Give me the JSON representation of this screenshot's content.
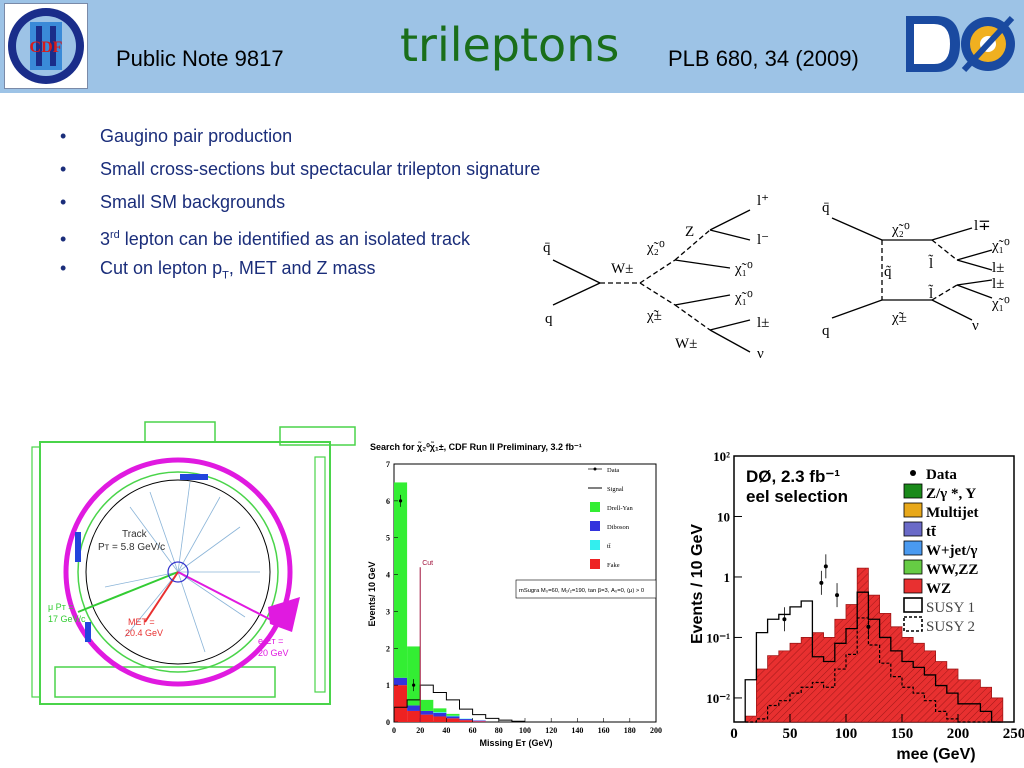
{
  "header": {
    "left_note": "Public Note 9817",
    "title": "trileptons",
    "reference": "PLB 680, 34 (2009)",
    "cdf_logo_text": "CDF II",
    "d0_logo_text": "DØ"
  },
  "bullets": [
    {
      "text": "Gaugino pair production"
    },
    {
      "text": "Small cross-sections but spectacular trilepton signature"
    },
    {
      "text": "Small SM backgrounds"
    },
    {
      "pre": "3",
      "sup": "rd",
      "post": " lepton can be identified as an isolated track"
    },
    {
      "pre": "Cut on lepton p",
      "sub": "T",
      "post": ", MET and Z mass"
    }
  ],
  "bullet_char": "•",
  "feynman_left": {
    "labels": [
      "q̄",
      "q",
      "W±",
      "χ̃₂⁰",
      "χ̃±",
      "Z",
      "l⁺",
      "l⁻",
      "χ̃₁⁰",
      "χ̃₁⁰",
      "W±",
      "l±",
      "ν"
    ]
  },
  "feynman_right": {
    "labels": [
      "q̄",
      "q",
      "q̃",
      "χ̃₂⁰",
      "χ̃±",
      "l∓",
      "l̃",
      "χ̃₁⁰",
      "l±",
      "l±",
      "l̃",
      "χ̃₁⁰",
      "ν"
    ]
  },
  "event_display": {
    "track_label": "Track",
    "track_pt": "Pᴛ = 5.8 GeV/c",
    "mu_label": "μ Pᴛ =",
    "mu_val": "17 GeV/c",
    "met_label": "MET =",
    "met_val": "20.4 GeV",
    "e_label": "e Eᴛ =",
    "e_val": "20 GeV"
  },
  "chart_data": [
    {
      "type": "bar",
      "title": "Search for χ̃₂⁰χ̃₁±, CDF Run II Preliminary, 3.2 fb⁻¹",
      "xlabel": "Missing Eᴛ (GeV)",
      "ylabel": "Events/ 10 GeV",
      "xlim": [
        0,
        200
      ],
      "ylim": [
        0,
        7
      ],
      "x_ticks": [
        0,
        20,
        40,
        60,
        80,
        100,
        120,
        140,
        160,
        180,
        200
      ],
      "y_ticks": [
        0,
        1,
        2,
        3,
        4,
        5,
        6,
        7
      ],
      "bin_edges": [
        0,
        10,
        20,
        30,
        40,
        50,
        60,
        70,
        80,
        90,
        100
      ],
      "series": [
        {
          "name": "Drell-Yan",
          "color": "#33ee33",
          "values": [
            5.3,
            1.6,
            0.3,
            0.1,
            0.05,
            0,
            0,
            0,
            0,
            0
          ]
        },
        {
          "name": "Diboson",
          "color": "#3333dd",
          "values": [
            0.2,
            0.15,
            0.1,
            0.1,
            0.05,
            0.03,
            0.02,
            0,
            0,
            0
          ]
        },
        {
          "name": "tt̄",
          "color": "#33eeee",
          "values": [
            0,
            0,
            0,
            0.02,
            0.02,
            0.01,
            0,
            0,
            0,
            0
          ]
        },
        {
          "name": "Fake",
          "color": "#ee2222",
          "values": [
            1.0,
            0.3,
            0.2,
            0.15,
            0.1,
            0.05,
            0.02,
            0,
            0,
            0
          ]
        },
        {
          "name": "Signal",
          "color": "#000000",
          "values": [
            0.4,
            0.6,
            1.0,
            0.8,
            0.6,
            0.35,
            0.2,
            0.1,
            0.05,
            0.02
          ]
        },
        {
          "name": "Data",
          "color": "#000000",
          "values": [
            6.0,
            1.0,
            0,
            0,
            0,
            0,
            0,
            0,
            0,
            0
          ]
        }
      ],
      "annotation": "mSugra M₀=60, M₁/₂=190, tan β=3, A₀=0, (μ) > 0",
      "cut_label": "Cut",
      "cut_x": 20
    },
    {
      "type": "bar",
      "title": "DØ, 2.3 fb⁻¹",
      "subtitle": "eel selection",
      "xlabel": "mee (GeV)",
      "ylabel": "Events / 10 GeV",
      "xlim": [
        0,
        250
      ],
      "ylim_log": [
        0.004,
        100
      ],
      "x_ticks": [
        0,
        50,
        100,
        150,
        200,
        250
      ],
      "y_ticks": [
        "10⁻²",
        "10⁻¹",
        "1",
        "10",
        "10²"
      ],
      "series": [
        {
          "name": "Data",
          "color": "#000000"
        },
        {
          "name": "Z/γ *, Υ",
          "color": "#1a8a1a"
        },
        {
          "name": "Multijet",
          "color": "#e8a81a"
        },
        {
          "name": "tt̄",
          "color": "#6a6ac8"
        },
        {
          "name": "W+jet/γ",
          "color": "#4a9af0"
        },
        {
          "name": "WW,ZZ",
          "color": "#66cc44"
        },
        {
          "name": "WZ",
          "color": "#e83030"
        },
        {
          "name": "SUSY 1",
          "color": "#000000"
        },
        {
          "name": "SUSY 2",
          "color": "#000000"
        }
      ],
      "wz_profile": [
        0.005,
        0.03,
        0.05,
        0.06,
        0.08,
        0.1,
        0.12,
        0.1,
        0.2,
        0.35,
        1.4,
        0.5,
        0.25,
        0.15,
        0.1,
        0.08,
        0.06,
        0.04,
        0.03,
        0.02,
        0.02,
        0.015,
        0.01
      ]
    }
  ]
}
